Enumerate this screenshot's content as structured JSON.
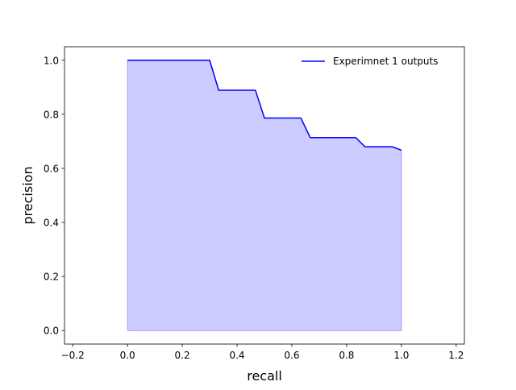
{
  "chart_data": {
    "type": "area",
    "series": [
      {
        "name": "Experimnet 1 outputs",
        "x": [
          0.0,
          0.3,
          0.333,
          0.467,
          0.5,
          0.633,
          0.667,
          0.833,
          0.867,
          0.967,
          1.0
        ],
        "y": [
          1.0,
          1.0,
          0.889,
          0.889,
          0.786,
          0.786,
          0.714,
          0.714,
          0.68,
          0.68,
          0.667
        ],
        "line_color": "#0000ff",
        "fill_color": "#ccccff",
        "fill_to": 0
      }
    ],
    "xlabel": "recall",
    "ylabel": "precision",
    "xlim": [
      -0.23,
      1.23
    ],
    "ylim": [
      -0.05,
      1.05
    ],
    "xticks": [
      -0.2,
      0.0,
      0.2,
      0.4,
      0.6,
      0.8,
      1.0,
      1.2
    ],
    "yticks": [
      0.0,
      0.2,
      0.4,
      0.6,
      0.8,
      1.0
    ],
    "xtick_labels": [
      "−0.2",
      "0.0",
      "0.2",
      "0.4",
      "0.6",
      "0.8",
      "1.0",
      "1.2"
    ],
    "ytick_labels": [
      "0.0",
      "0.2",
      "0.4",
      "0.6",
      "0.8",
      "1.0"
    ],
    "grid": false,
    "legend_position": "top-right"
  }
}
